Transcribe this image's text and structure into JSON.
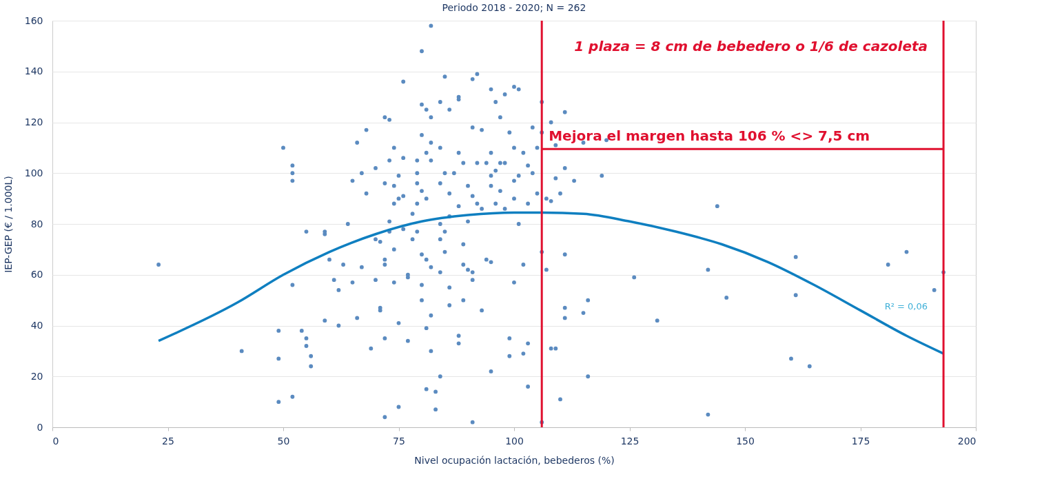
{
  "chart_data": {
    "type": "scatter",
    "title": "Periodo 2018 - 2020; N = 262",
    "xlabel": "Nivel ocupación lactación, bebederos (%)",
    "ylabel": "IEP-GEP (€ / 1.000L)",
    "xlim": [
      0,
      200
    ],
    "xticks": [
      0,
      25,
      50,
      75,
      100,
      125,
      150,
      175,
      200
    ],
    "ylim": [
      0,
      160
    ],
    "yticks": [
      0,
      20,
      40,
      60,
      80,
      100,
      120,
      140,
      160
    ],
    "grid": "y",
    "marker": "circle",
    "series": [
      {
        "color": "#5b8bc0",
        "x": [
          23,
          41,
          49,
          49,
          49,
          50,
          52,
          52,
          52,
          52,
          52,
          54,
          55,
          55,
          55,
          56,
          56,
          59,
          59,
          59,
          60,
          61,
          62,
          62,
          63,
          64,
          65,
          65,
          66,
          66,
          67,
          67,
          68,
          68,
          69,
          70,
          70,
          70,
          71,
          71,
          71,
          72,
          72,
          72,
          72,
          72,
          72,
          73,
          73,
          73,
          73,
          74,
          74,
          74,
          74,
          74,
          75,
          75,
          75,
          75,
          76,
          76,
          76,
          76,
          77,
          77,
          77,
          78,
          78,
          79,
          79,
          79,
          79,
          79,
          80,
          80,
          80,
          80,
          80,
          80,
          80,
          81,
          81,
          81,
          81,
          81,
          81,
          82,
          82,
          82,
          82,
          82,
          82,
          82,
          83,
          83,
          84,
          84,
          84,
          84,
          84,
          84,
          84,
          85,
          85,
          85,
          85,
          86,
          86,
          86,
          86,
          86,
          87,
          88,
          88,
          88,
          88,
          88,
          88,
          89,
          89,
          89,
          89,
          90,
          90,
          90,
          91,
          91,
          91,
          91,
          91,
          91,
          92,
          92,
          92,
          93,
          93,
          93,
          94,
          94,
          95,
          95,
          95,
          95,
          95,
          95,
          96,
          96,
          96,
          97,
          97,
          97,
          98,
          98,
          98,
          99,
          99,
          99,
          100,
          100,
          100,
          100,
          100,
          101,
          101,
          101,
          102,
          102,
          102,
          103,
          103,
          103,
          103,
          104,
          104,
          105,
          105,
          106,
          106,
          106,
          106,
          107,
          107,
          108,
          108,
          108,
          109,
          109,
          109,
          110,
          110,
          111,
          111,
          111,
          111,
          111,
          113,
          115,
          115,
          116,
          116,
          119,
          120,
          126,
          131,
          142,
          142,
          144,
          146,
          160,
          161,
          161,
          164,
          181,
          185,
          191,
          193
        ],
        "values": [
          64,
          30,
          38,
          27,
          10,
          110,
          103,
          100,
          97,
          56,
          12,
          38,
          77,
          35,
          32,
          24,
          28,
          76,
          77,
          42,
          66,
          58,
          40,
          54,
          64,
          80,
          57,
          97,
          112,
          43,
          100,
          63,
          117,
          92,
          31,
          102,
          74,
          58,
          46,
          47,
          73,
          122,
          96,
          66,
          64,
          35,
          4,
          121,
          105,
          81,
          77,
          110,
          88,
          95,
          70,
          57,
          90,
          99,
          41,
          8,
          136,
          106,
          91,
          78,
          59,
          60,
          34,
          84,
          74,
          100,
          105,
          96,
          88,
          77,
          148,
          127,
          115,
          93,
          68,
          56,
          50,
          125,
          108,
          90,
          66,
          39,
          15,
          158,
          122,
          112,
          105,
          63,
          44,
          30,
          14,
          7,
          128,
          110,
          96,
          80,
          74,
          61,
          20,
          138,
          100,
          77,
          69,
          125,
          92,
          83,
          55,
          48,
          100,
          130,
          129,
          108,
          87,
          36,
          33,
          104,
          72,
          64,
          50,
          95,
          81,
          62,
          137,
          118,
          91,
          61,
          58,
          2,
          139,
          104,
          88,
          117,
          86,
          46,
          104,
          66,
          133,
          108,
          99,
          95,
          65,
          22,
          128,
          101,
          88,
          122,
          104,
          93,
          131,
          104,
          86,
          116,
          35,
          28,
          134,
          110,
          97,
          90,
          57,
          133,
          99,
          80,
          108,
          64,
          29,
          103,
          88,
          33,
          16,
          118,
          100,
          110,
          92,
          128,
          116,
          69,
          2,
          90,
          62,
          120,
          89,
          31,
          111,
          98,
          31,
          92,
          11,
          124,
          102,
          68,
          47,
          43,
          97,
          112,
          45,
          20,
          50,
          99,
          113,
          59,
          42,
          62,
          5,
          87,
          51,
          27,
          67,
          52,
          24,
          64,
          69,
          54,
          61
        ]
      },
      {
        "type": "line",
        "color": "#0f7fc0",
        "marker": "none",
        "line_style": "solid",
        "x": [
          23,
          40,
          50,
          60,
          70,
          80,
          90,
          100,
          106,
          115,
          125,
          135,
          145,
          155,
          165,
          175,
          185,
          193
        ],
        "values": [
          34,
          49,
          60,
          69,
          76,
          81,
          83.5,
          84.5,
          84.5,
          84,
          81,
          77,
          72,
          65,
          56,
          46,
          36,
          29
        ]
      }
    ],
    "ref_lines": [
      {
        "axis": "x",
        "value": 106,
        "color": "#e0102f"
      },
      {
        "axis": "x",
        "value": 193,
        "color": "#e0102f"
      }
    ],
    "annotations": [
      {
        "text": "Mejora el margen hasta 106 % <> 7,5 cm",
        "x": 106,
        "y": 109.5
      },
      "1 plaza = 8 cm de bebedero o 1/6 de cazoleta",
      "R² = 0,06"
    ]
  }
}
